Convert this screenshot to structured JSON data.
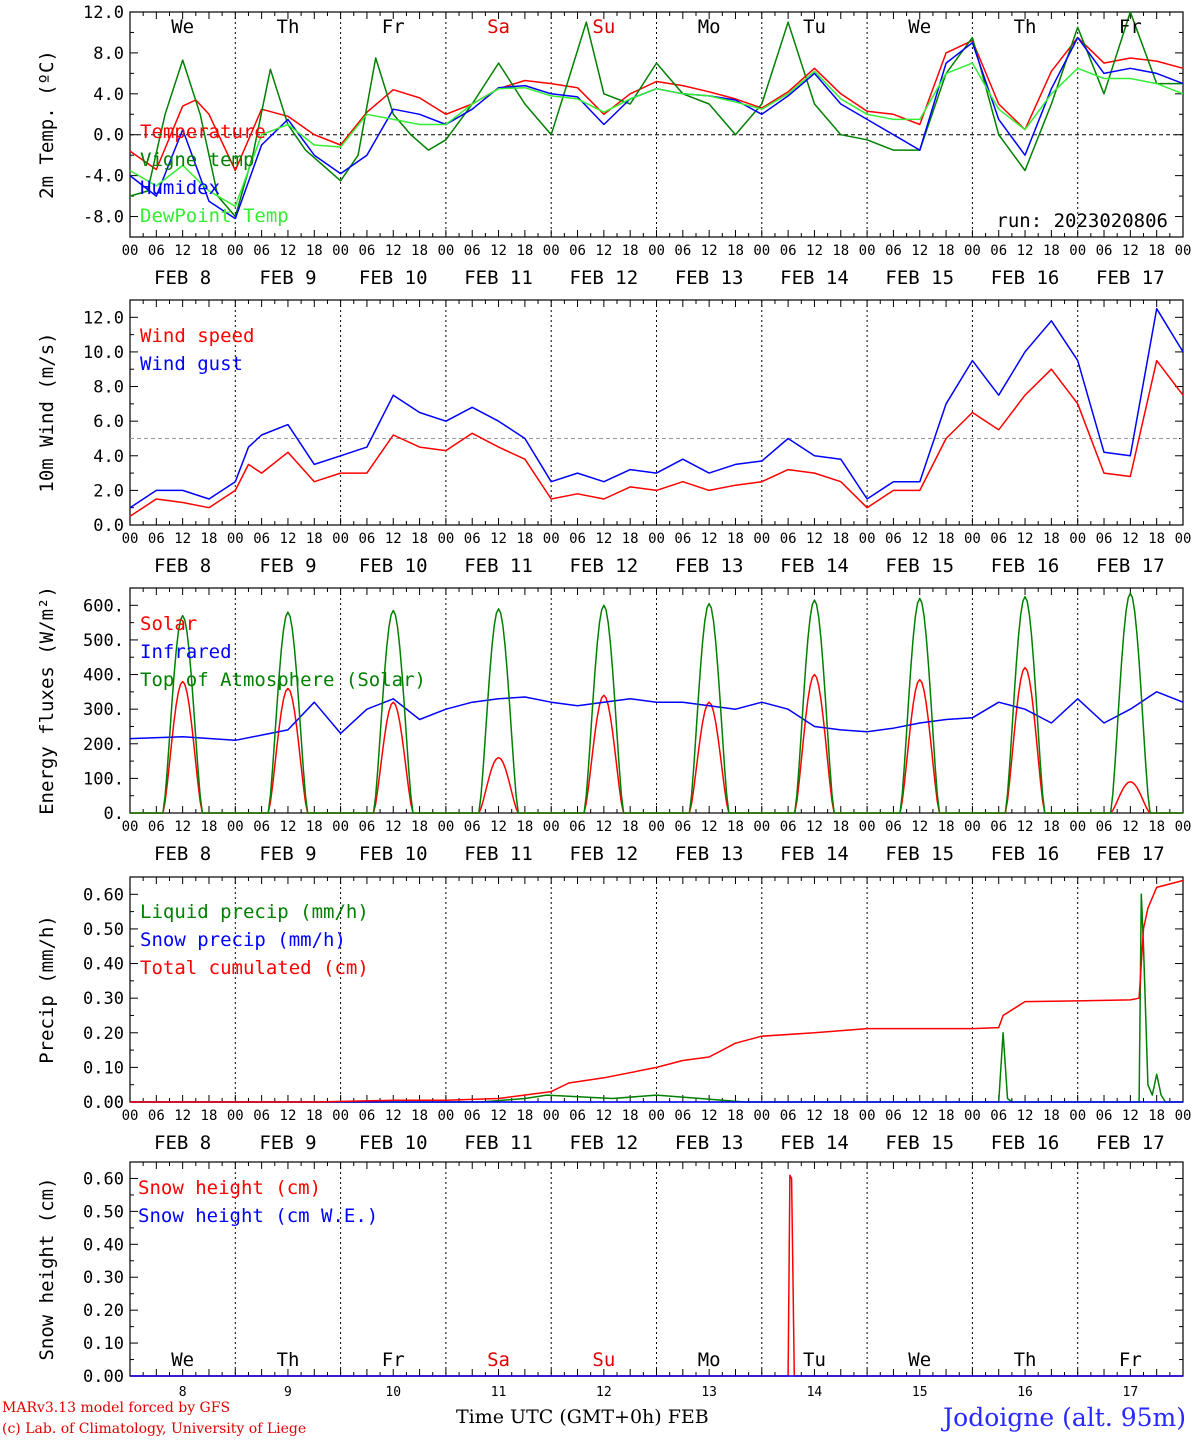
{
  "run_label": "run: 2023020806",
  "days_short": [
    "We",
    "Th",
    "Fr",
    "Sa",
    "Su",
    "Mo",
    "Tu",
    "We",
    "Th",
    "Fr"
  ],
  "day_colors": [
    "#000000",
    "#000000",
    "#000000",
    "#e00000",
    "#e00000",
    "#000000",
    "#000000",
    "#000000",
    "#000000",
    "#000000"
  ],
  "date_labels": [
    "FEB  8",
    "FEB  9",
    "FEB 10",
    "FEB 11",
    "FEB 12",
    "FEB 13",
    "FEB 14",
    "FEB 15",
    "FEB 16",
    "FEB 17"
  ],
  "hour_ticks": [
    "00",
    "06",
    "12",
    "18"
  ],
  "hour_ticks_end": "00",
  "bottom_day_numbers": [
    "8",
    "9",
    "10",
    "11",
    "12",
    "13",
    "14",
    "15",
    "16",
    "17"
  ],
  "footer": {
    "model": "MARv3.13 model forced by GFS",
    "credit": "(c) Lab. of Climatology, University of Liege",
    "xlabel": "Time UTC (GMT+0h) FEB",
    "station": "Jodoigne (alt. 95m)"
  },
  "colors": {
    "red": "#ff0000",
    "green": "#008000",
    "blue": "#0000ff",
    "lightgreen": "#33ee33",
    "grid": "#000000"
  },
  "chart_data": [
    {
      "type": "line",
      "ylabel": "2m Temp. (ºC)",
      "ylim": [
        -10,
        12
      ],
      "yticks": [
        -8,
        -4,
        0,
        4,
        8,
        12
      ],
      "ytick_labels": [
        "-8.0",
        "-4.0",
        "0.0",
        "4.0",
        "8.0",
        "12.0"
      ],
      "reference_line": 0,
      "x_unit": "hours since Feb 8 00 UTC",
      "x_range": [
        0,
        240
      ],
      "series": [
        {
          "name": "Temperature",
          "color": "red",
          "x": [
            0,
            6,
            12,
            15,
            18,
            24,
            30,
            36,
            42,
            48,
            54,
            60,
            66,
            72,
            78,
            84,
            90,
            96,
            102,
            108,
            114,
            120,
            126,
            132,
            138,
            144,
            150,
            156,
            162,
            168,
            174,
            180,
            186,
            192,
            198,
            204,
            210,
            216,
            222,
            228,
            234,
            240
          ],
          "y": [
            -1.6,
            -3.4,
            2.8,
            3.4,
            2,
            -3.5,
            2.5,
            1.8,
            0,
            -1,
            2.2,
            4.4,
            3.6,
            2,
            3,
            4.5,
            5.3,
            5,
            4.6,
            2,
            4,
            5.2,
            4.8,
            4.2,
            3.5,
            2.6,
            4.2,
            6.5,
            4,
            2.3,
            2,
            1,
            8,
            9.2,
            3,
            0.5,
            6.2,
            9.5,
            7,
            7.5,
            7.2,
            6.5
          ]
        },
        {
          "name": "Vigne temp",
          "color": "green",
          "x": [
            0,
            4,
            8,
            12,
            16,
            20,
            24,
            28,
            32,
            36,
            40,
            44,
            48,
            52,
            56,
            60,
            64,
            68,
            72,
            78,
            84,
            90,
            96,
            100,
            104,
            108,
            114,
            120,
            126,
            132,
            138,
            144,
            150,
            156,
            162,
            168,
            174,
            180,
            186,
            192,
            198,
            204,
            210,
            216,
            222,
            228,
            234,
            240
          ],
          "y": [
            -6,
            -5.5,
            2,
            7.3,
            2,
            -6,
            -8,
            -2,
            6.4,
            1,
            -1.5,
            -3,
            -4.5,
            -2,
            7.5,
            2,
            0,
            -1.5,
            -0.5,
            3,
            7,
            3,
            0,
            5.5,
            11,
            4,
            3,
            7,
            4,
            3,
            0,
            3,
            11,
            3,
            0,
            -0.5,
            -1.5,
            -1.5,
            6,
            9.5,
            0,
            -3.5,
            3,
            10.5,
            4,
            12,
            5,
            5
          ]
        },
        {
          "name": "Humidex",
          "color": "blue",
          "x": [
            0,
            6,
            12,
            18,
            24,
            30,
            36,
            42,
            48,
            54,
            60,
            66,
            72,
            78,
            84,
            90,
            96,
            102,
            108,
            114,
            120,
            126,
            132,
            138,
            144,
            150,
            156,
            162,
            168,
            174,
            180,
            186,
            192,
            198,
            204,
            210,
            216,
            222,
            228,
            234,
            240
          ],
          "y": [
            -4,
            -6,
            0.5,
            -6.5,
            -8.2,
            -1,
            1.5,
            -2,
            -3.8,
            -2,
            2.5,
            2,
            1,
            2.5,
            4.6,
            4.8,
            4,
            3.7,
            1,
            3.5,
            4.5,
            4,
            3.8,
            3.4,
            2,
            3.8,
            6,
            3,
            1.5,
            0,
            -1.5,
            7,
            9,
            1.5,
            -2,
            4.5,
            9.5,
            6,
            6.5,
            6,
            5
          ]
        },
        {
          "name": "DewPoint Temp",
          "color": "lightgreen",
          "x": [
            0,
            6,
            12,
            18,
            24,
            30,
            36,
            42,
            48,
            54,
            60,
            66,
            72,
            78,
            84,
            90,
            96,
            102,
            108,
            114,
            120,
            126,
            132,
            138,
            144,
            150,
            156,
            162,
            168,
            174,
            180,
            186,
            192,
            198,
            204,
            210,
            216,
            222,
            228,
            234,
            240
          ],
          "y": [
            -3.5,
            -5,
            -3,
            -5.5,
            -7,
            0,
            1,
            -1,
            -1.2,
            2,
            1.5,
            1,
            1,
            3,
            4.5,
            4.6,
            3.8,
            3.5,
            2.2,
            3.5,
            4.5,
            4,
            3.8,
            3.2,
            2.5,
            4,
            6.2,
            3.5,
            2,
            1.5,
            1.5,
            6,
            7,
            2.5,
            0.5,
            4,
            6.5,
            5.5,
            5.5,
            5,
            4
          ]
        }
      ]
    },
    {
      "type": "line",
      "ylabel": "10m Wind (m/s)",
      "ylim": [
        0,
        13
      ],
      "yticks": [
        0,
        2,
        4,
        6,
        8,
        10,
        12
      ],
      "ytick_labels": [
        "0.0",
        "2.0",
        "4.0",
        "6.0",
        "8.0",
        "10.0",
        "12.0"
      ],
      "reference_line": 5,
      "x_range": [
        0,
        240
      ],
      "series": [
        {
          "name": "Wind speed",
          "color": "red",
          "x": [
            0,
            6,
            12,
            18,
            24,
            27,
            30,
            36,
            42,
            48,
            54,
            60,
            66,
            72,
            78,
            84,
            90,
            96,
            102,
            108,
            114,
            120,
            126,
            132,
            138,
            144,
            150,
            156,
            162,
            168,
            174,
            180,
            186,
            192,
            198,
            204,
            210,
            216,
            222,
            228,
            234,
            240
          ],
          "y": [
            0.5,
            1.5,
            1.3,
            1,
            2,
            3.5,
            3,
            4.2,
            2.5,
            3,
            3,
            5.2,
            4.5,
            4.3,
            5.3,
            4.5,
            3.8,
            1.5,
            1.8,
            1.5,
            2.2,
            2,
            2.5,
            2,
            2.3,
            2.5,
            3.2,
            3,
            2.5,
            1,
            2,
            2,
            5,
            6.5,
            5.5,
            7.5,
            9,
            7,
            3,
            2.8,
            9.5,
            7.5
          ]
        },
        {
          "name": "Wind gust",
          "color": "blue",
          "x": [
            0,
            6,
            12,
            18,
            24,
            27,
            30,
            36,
            42,
            48,
            54,
            60,
            66,
            72,
            78,
            84,
            90,
            96,
            102,
            108,
            114,
            120,
            126,
            132,
            138,
            144,
            150,
            156,
            162,
            168,
            174,
            180,
            186,
            192,
            198,
            204,
            210,
            216,
            222,
            228,
            234,
            240
          ],
          "y": [
            1,
            2,
            2,
            1.5,
            2.5,
            4.5,
            5.2,
            5.8,
            3.5,
            4,
            4.5,
            7.5,
            6.5,
            6,
            6.8,
            6,
            5,
            2.5,
            3,
            2.5,
            3.2,
            3,
            3.8,
            3,
            3.5,
            3.7,
            5,
            4,
            3.8,
            1.5,
            2.5,
            2.5,
            7,
            9.5,
            7.5,
            10,
            11.8,
            9.5,
            4.2,
            4,
            12.5,
            10
          ]
        }
      ]
    },
    {
      "type": "line",
      "ylabel": "Energy fluxes (W/m²)",
      "ylim": [
        0,
        650
      ],
      "yticks": [
        0,
        100,
        200,
        300,
        400,
        500,
        600
      ],
      "ytick_labels": [
        "0.",
        "100.",
        "200.",
        "300.",
        "400.",
        "500.",
        "600."
      ],
      "x_range": [
        0,
        240
      ],
      "series": [
        {
          "name": "Solar",
          "color": "red",
          "day_peaks": [
            380,
            360,
            320,
            160,
            340,
            320,
            400,
            385,
            420,
            90
          ]
        },
        {
          "name": "Infrared",
          "color": "blue",
          "x": [
            0,
            12,
            24,
            36,
            42,
            48,
            54,
            60,
            66,
            72,
            78,
            84,
            90,
            96,
            102,
            108,
            114,
            120,
            126,
            132,
            138,
            144,
            150,
            156,
            162,
            168,
            174,
            180,
            186,
            192,
            198,
            204,
            210,
            216,
            222,
            228,
            234,
            240
          ],
          "y": [
            215,
            220,
            210,
            240,
            320,
            230,
            300,
            330,
            270,
            300,
            320,
            330,
            335,
            320,
            310,
            320,
            330,
            320,
            320,
            310,
            300,
            320,
            300,
            250,
            240,
            235,
            245,
            260,
            270,
            275,
            320,
            300,
            260,
            330,
            260,
            300,
            350,
            320
          ]
        },
        {
          "name": "Top of Atmosphere (Solar)",
          "color": "green",
          "day_peaks": [
            570,
            580,
            585,
            590,
            600,
            605,
            615,
            620,
            625,
            635
          ]
        }
      ]
    },
    {
      "type": "line",
      "ylabel": "Precip (mm/h)",
      "ylim": [
        0,
        0.65
      ],
      "yticks": [
        0,
        0.1,
        0.2,
        0.3,
        0.4,
        0.5,
        0.6
      ],
      "ytick_labels": [
        "0.00",
        "0.10",
        "0.20",
        "0.30",
        "0.40",
        "0.50",
        "0.60"
      ],
      "x_range": [
        0,
        240
      ],
      "series": [
        {
          "name": "Liquid precip (mm/h)",
          "color": "green",
          "x": [
            0,
            80,
            90,
            95,
            110,
            120,
            130,
            140,
            150,
            198,
            199,
            200,
            201,
            202,
            230,
            230.5,
            231,
            232,
            233,
            234,
            235,
            236,
            240
          ],
          "y": [
            0,
            0,
            0.01,
            0.02,
            0.01,
            0.02,
            0.01,
            0,
            0,
            0,
            0.2,
            0.01,
            0,
            0,
            0,
            0.6,
            0.45,
            0.05,
            0.02,
            0.08,
            0.02,
            0,
            0
          ]
        },
        {
          "name": "Snow precip (mm/h)",
          "color": "blue",
          "x": [
            0,
            240
          ],
          "y": [
            0,
            0
          ]
        },
        {
          "name": "Total cumulated (cm)",
          "color": "red",
          "x": [
            0,
            42,
            60,
            72,
            84,
            96,
            100,
            108,
            120,
            126,
            132,
            138,
            144,
            156,
            168,
            180,
            192,
            198,
            199,
            204,
            216,
            228,
            230,
            231,
            232,
            234,
            240
          ],
          "y": [
            0,
            0,
            0.005,
            0.005,
            0.01,
            0.03,
            0.055,
            0.07,
            0.1,
            0.12,
            0.13,
            0.17,
            0.19,
            0.2,
            0.212,
            0.212,
            0.212,
            0.215,
            0.25,
            0.29,
            0.292,
            0.295,
            0.3,
            0.5,
            0.56,
            0.62,
            0.64
          ]
        }
      ]
    },
    {
      "type": "line",
      "ylabel": "Snow height (cm)",
      "ylim": [
        0,
        0.65
      ],
      "yticks": [
        0,
        0.1,
        0.2,
        0.3,
        0.4,
        0.5,
        0.6
      ],
      "ytick_labels": [
        "0.00",
        "0.10",
        "0.20",
        "0.30",
        "0.40",
        "0.50",
        "0.60"
      ],
      "x_range": [
        0,
        240
      ],
      "series": [
        {
          "name": "Snow height (cm)",
          "color": "red",
          "x": [
            0,
            150,
            150.4,
            150.8,
            151.4,
            240
          ],
          "y": [
            0,
            0,
            0.61,
            0.6,
            0,
            0
          ]
        },
        {
          "name": "Snow height (cm W.E.)",
          "color": "blue",
          "x": [
            0,
            240
          ],
          "y": [
            0,
            0
          ]
        }
      ]
    }
  ]
}
